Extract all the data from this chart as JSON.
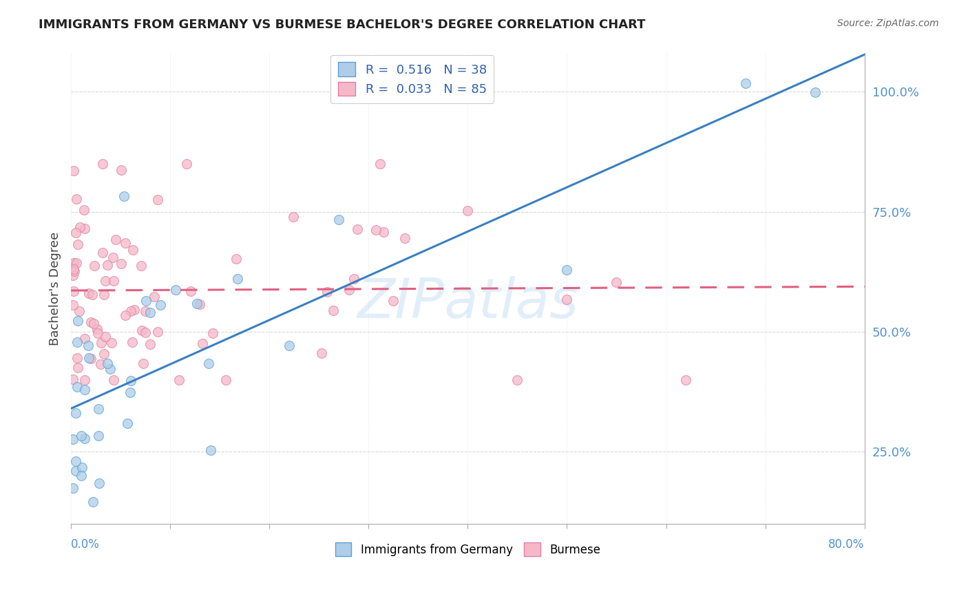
{
  "title": "IMMIGRANTS FROM GERMANY VS BURMESE BACHELOR'S DEGREE CORRELATION CHART",
  "source_text": "Source: ZipAtlas.com",
  "ylabel": "Bachelor's Degree",
  "ytick_values": [
    25.0,
    50.0,
    75.0,
    100.0
  ],
  "xmin": 0.0,
  "xmax": 80.0,
  "ymin": 10.0,
  "ymax": 108.0,
  "series_blue": {
    "R": 0.516,
    "N": 38,
    "color": "#aecde8",
    "line_color": "#3a7fc1",
    "marker_edge": "#5a9fd4"
  },
  "series_pink": {
    "R": 0.033,
    "N": 85,
    "color": "#f5b8c8",
    "line_color": "#e06080",
    "marker_edge": "#e080a0"
  },
  "watermark": "ZIPatlas",
  "bg_color": "#ffffff",
  "grid_color": "#d8d8d8",
  "title_color": "#222222",
  "axis_label_color": "#5090d0",
  "legend_label_color": "#3060b0"
}
